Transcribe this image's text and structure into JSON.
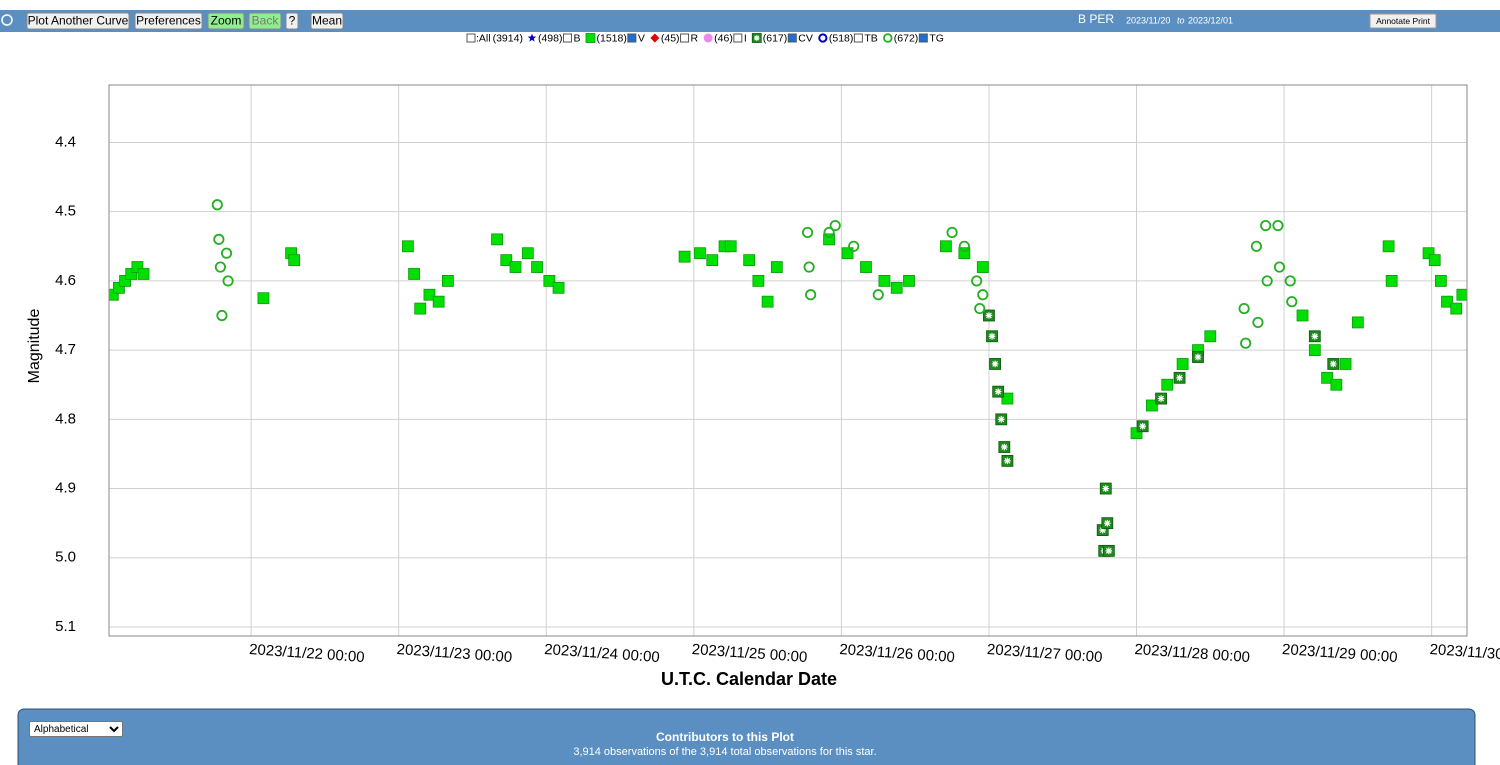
{
  "toolbar": {
    "buttons": [
      "Plot Another Curve",
      "Preferences",
      "Zoom",
      "Back",
      "?",
      "Mean"
    ],
    "star": "B PER",
    "date_from": "2023/11/20",
    "date_sep": "to",
    "date_to": "2023/12/01",
    "annotate": "Annotate Print"
  },
  "chart_data": {
    "type": "scatter",
    "x_label": "U.T.C. Calendar Date",
    "y_label": "Magnitude",
    "xlim": [
      "2023/11/21 00:53",
      "2023/11/30 05:45"
    ],
    "xticks": [
      "2023/11/22 00:00",
      "2023/11/23 00:00",
      "2023/11/24 00:00",
      "2023/11/25 00:00",
      "2023/11/26 00:00",
      "2023/11/27 00:00",
      "2023/11/28 00:00",
      "2023/11/29 00:00",
      "2023/11/30 00:00"
    ],
    "ylim": [
      4.317,
      5.113
    ],
    "y_reversed": true,
    "yticks": [
      4.4,
      4.5,
      4.6,
      4.7,
      4.8,
      4.9,
      {
        "value": 5,
        "label": "5.0"
      },
      5.1
    ],
    "grid": true,
    "series": [
      {
        "name": ":All",
        "count": "(3914)",
        "marker": "none",
        "color": "#000000",
        "checked": false
      },
      {
        "name": "B",
        "count": "(498)",
        "marker": "star",
        "color": "#0000cc",
        "checked": false
      },
      {
        "name": "V",
        "count": "(1518)",
        "marker": "square",
        "color": "#00e000",
        "checked": true,
        "x": [
          "2023/11/21 01:30",
          "2023/11/21 02:30",
          "2023/11/21 03:30",
          "2023/11/21 04:30",
          "2023/11/21 05:30",
          "2023/11/21 06:30",
          "2023/11/22 02:00",
          "2023/11/22 06:30",
          "2023/11/22 07:00",
          "2023/11/23 01:30",
          "2023/11/23 02:30",
          "2023/11/23 03:30",
          "2023/11/23 05:00",
          "2023/11/23 06:30",
          "2023/11/23 08:00",
          "2023/11/23 16:00",
          "2023/11/23 17:30",
          "2023/11/23 19:00",
          "2023/11/23 21:00",
          "2023/11/23 22:30",
          "2023/11/24 00:30",
          "2023/11/24 02:00",
          "2023/11/24 22:30",
          "2023/11/25 01:00",
          "2023/11/25 03:00",
          "2023/11/25 05:00",
          "2023/11/25 06:00",
          "2023/11/25 09:00",
          "2023/11/25 10:30",
          "2023/11/25 12:00",
          "2023/11/25 13:30",
          "2023/11/25 22:00",
          "2023/11/26 01:00",
          "2023/11/26 04:00",
          "2023/11/26 07:00",
          "2023/11/26 09:00",
          "2023/11/26 11:00",
          "2023/11/26 17:00",
          "2023/11/26 20:00",
          "2023/11/26 23:00",
          "2023/11/27 03:00",
          "2023/11/28 00:00",
          "2023/11/28 02:30",
          "2023/11/28 05:00",
          "2023/11/28 07:30",
          "2023/11/28 10:00",
          "2023/11/28 12:00",
          "2023/11/29 03:00",
          "2023/11/29 05:00",
          "2023/11/29 07:00",
          "2023/11/29 08:30",
          "2023/11/29 10:00",
          "2023/11/29 12:00",
          "2023/11/29 17:00",
          "2023/11/29 17:30",
          "2023/11/29 23:30",
          "2023/11/30 00:30",
          "2023/11/30 01:30",
          "2023/11/30 02:30",
          "2023/11/30 04:00",
          "2023/11/30 05:00"
        ],
        "values": [
          4.62,
          4.61,
          4.6,
          4.59,
          4.58,
          4.59,
          4.625,
          4.56,
          4.57,
          4.55,
          4.59,
          4.64,
          4.62,
          4.63,
          4.6,
          4.54,
          4.57,
          4.58,
          4.56,
          4.58,
          4.6,
          4.61,
          4.565,
          4.56,
          4.57,
          4.55,
          4.55,
          4.57,
          4.6,
          4.63,
          4.58,
          4.54,
          4.56,
          4.58,
          4.6,
          4.61,
          4.6,
          4.55,
          4.56,
          4.58,
          4.77,
          4.82,
          4.78,
          4.75,
          4.72,
          4.7,
          4.68,
          4.65,
          4.7,
          4.74,
          4.75,
          4.72,
          4.66,
          4.55,
          4.6,
          4.56,
          4.57,
          4.6,
          4.63,
          4.64,
          4.62
        ]
      },
      {
        "name": "R",
        "count": "(45)",
        "marker": "diamond",
        "color": "#e00000",
        "checked": false
      },
      {
        "name": "I",
        "count": "(46)",
        "marker": "dot",
        "color": "#ee88ee",
        "checked": false
      },
      {
        "name": "CV",
        "count": "(617)",
        "marker": "cv",
        "color": "#1e8a1e",
        "checked": true,
        "x": [
          "2023/11/27 00:00",
          "2023/11/27 00:30",
          "2023/11/27 01:00",
          "2023/11/27 01:30",
          "2023/11/27 02:00",
          "2023/11/27 02:30",
          "2023/11/27 03:00",
          "2023/11/27 18:30",
          "2023/11/27 18:45",
          "2023/11/27 19:00",
          "2023/11/27 19:15",
          "2023/11/27 19:30",
          "2023/11/28 01:00",
          "2023/11/28 04:00",
          "2023/11/28 07:00",
          "2023/11/28 10:00",
          "2023/11/29 05:00",
          "2023/11/29 08:00"
        ],
        "values": [
          4.65,
          4.68,
          4.72,
          4.76,
          4.8,
          4.84,
          4.86,
          4.96,
          4.99,
          4.9,
          4.95,
          4.99,
          4.81,
          4.77,
          4.74,
          4.71,
          4.68,
          4.72
        ]
      },
      {
        "name": "TB",
        "count": "(518)",
        "marker": "ring-star",
        "color": "#0000cc",
        "checked": false
      },
      {
        "name": "TG",
        "count": "(672)",
        "marker": "circle",
        "color": "#22b022",
        "checked": true,
        "x": [
          "2023/11/21 18:30",
          "2023/11/21 18:45",
          "2023/11/21 19:00",
          "2023/11/21 19:15",
          "2023/11/21 20:00",
          "2023/11/21 20:15",
          "2023/11/25 18:30",
          "2023/11/25 18:45",
          "2023/11/25 19:00",
          "2023/11/25 22:00",
          "2023/11/25 23:00",
          "2023/11/26 02:00",
          "2023/11/26 06:00",
          "2023/11/26 18:00",
          "2023/11/26 20:00",
          "2023/11/26 22:00",
          "2023/11/26 22:30",
          "2023/11/26 23:00",
          "2023/11/28 17:30",
          "2023/11/28 17:45",
          "2023/11/28 19:30",
          "2023/11/28 19:45",
          "2023/11/28 21:00",
          "2023/11/28 21:15",
          "2023/11/28 23:00",
          "2023/11/28 23:15",
          "2023/11/29 01:00",
          "2023/11/29 01:15"
        ],
        "values": [
          4.49,
          4.54,
          4.58,
          4.65,
          4.56,
          4.6,
          4.53,
          4.58,
          4.62,
          4.53,
          4.52,
          4.55,
          4.62,
          4.53,
          4.55,
          4.6,
          4.64,
          4.62,
          4.64,
          4.69,
          4.55,
          4.66,
          4.52,
          4.6,
          4.52,
          4.58,
          4.6,
          4.63
        ]
      }
    ]
  },
  "footer": {
    "sort": "Alphabetical",
    "title": "Contributors to this Plot",
    "summary": "3,914 observations of the 3,914 total observations for this star."
  }
}
